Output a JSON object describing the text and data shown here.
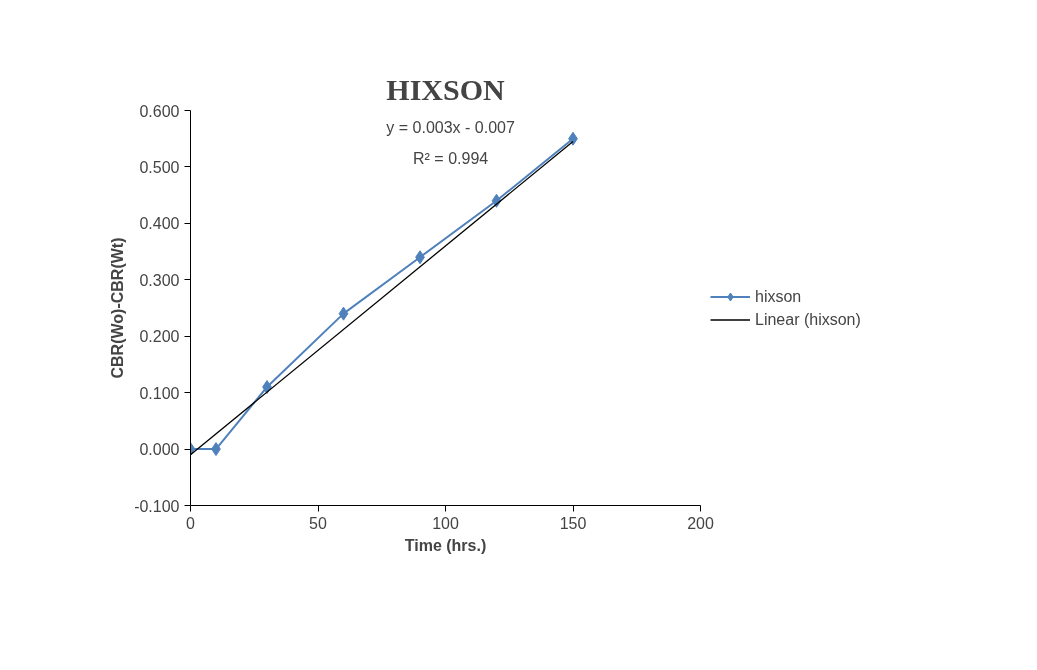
{
  "chart_data": {
    "type": "line",
    "title": "HIXSON",
    "xlabel": "Time (hrs.)",
    "ylabel": "CBR(Wo)-CBR(Wt)",
    "series": [
      {
        "name": "hixson",
        "color": "#4f81bd",
        "marker": "diamond",
        "x": [
          0,
          10,
          30,
          60,
          90,
          120,
          150
        ],
        "values": [
          0,
          0,
          0.11,
          0.24,
          0.34,
          0.44,
          0.55
        ]
      },
      {
        "name": "Linear (hixson)",
        "color": "#000000",
        "type": "line",
        "marker": "none",
        "x": [
          0,
          150
        ],
        "values": [
          -0.01,
          0.545
        ]
      }
    ],
    "annotations": [
      "y = 0.003x - 0.007",
      "R² = 0.994"
    ],
    "xlim": [
      0,
      200
    ],
    "xticks": [
      0,
      50,
      100,
      150,
      200
    ],
    "ylim": [
      -0.1,
      0.6
    ],
    "yticks": [
      {
        "value": -0.1,
        "label": "-0.100"
      },
      {
        "value": 0,
        "label": "0.000"
      },
      {
        "value": 0.1,
        "label": "0.100"
      },
      {
        "value": 0.2,
        "label": "0.200"
      },
      {
        "value": 0.3,
        "label": "0.300"
      },
      {
        "value": 0.4,
        "label": "0.400"
      },
      {
        "value": 0.5,
        "label": "0.500"
      },
      {
        "value": 0.6,
        "label": "0.600"
      }
    ],
    "grid": false,
    "legend": "right"
  }
}
